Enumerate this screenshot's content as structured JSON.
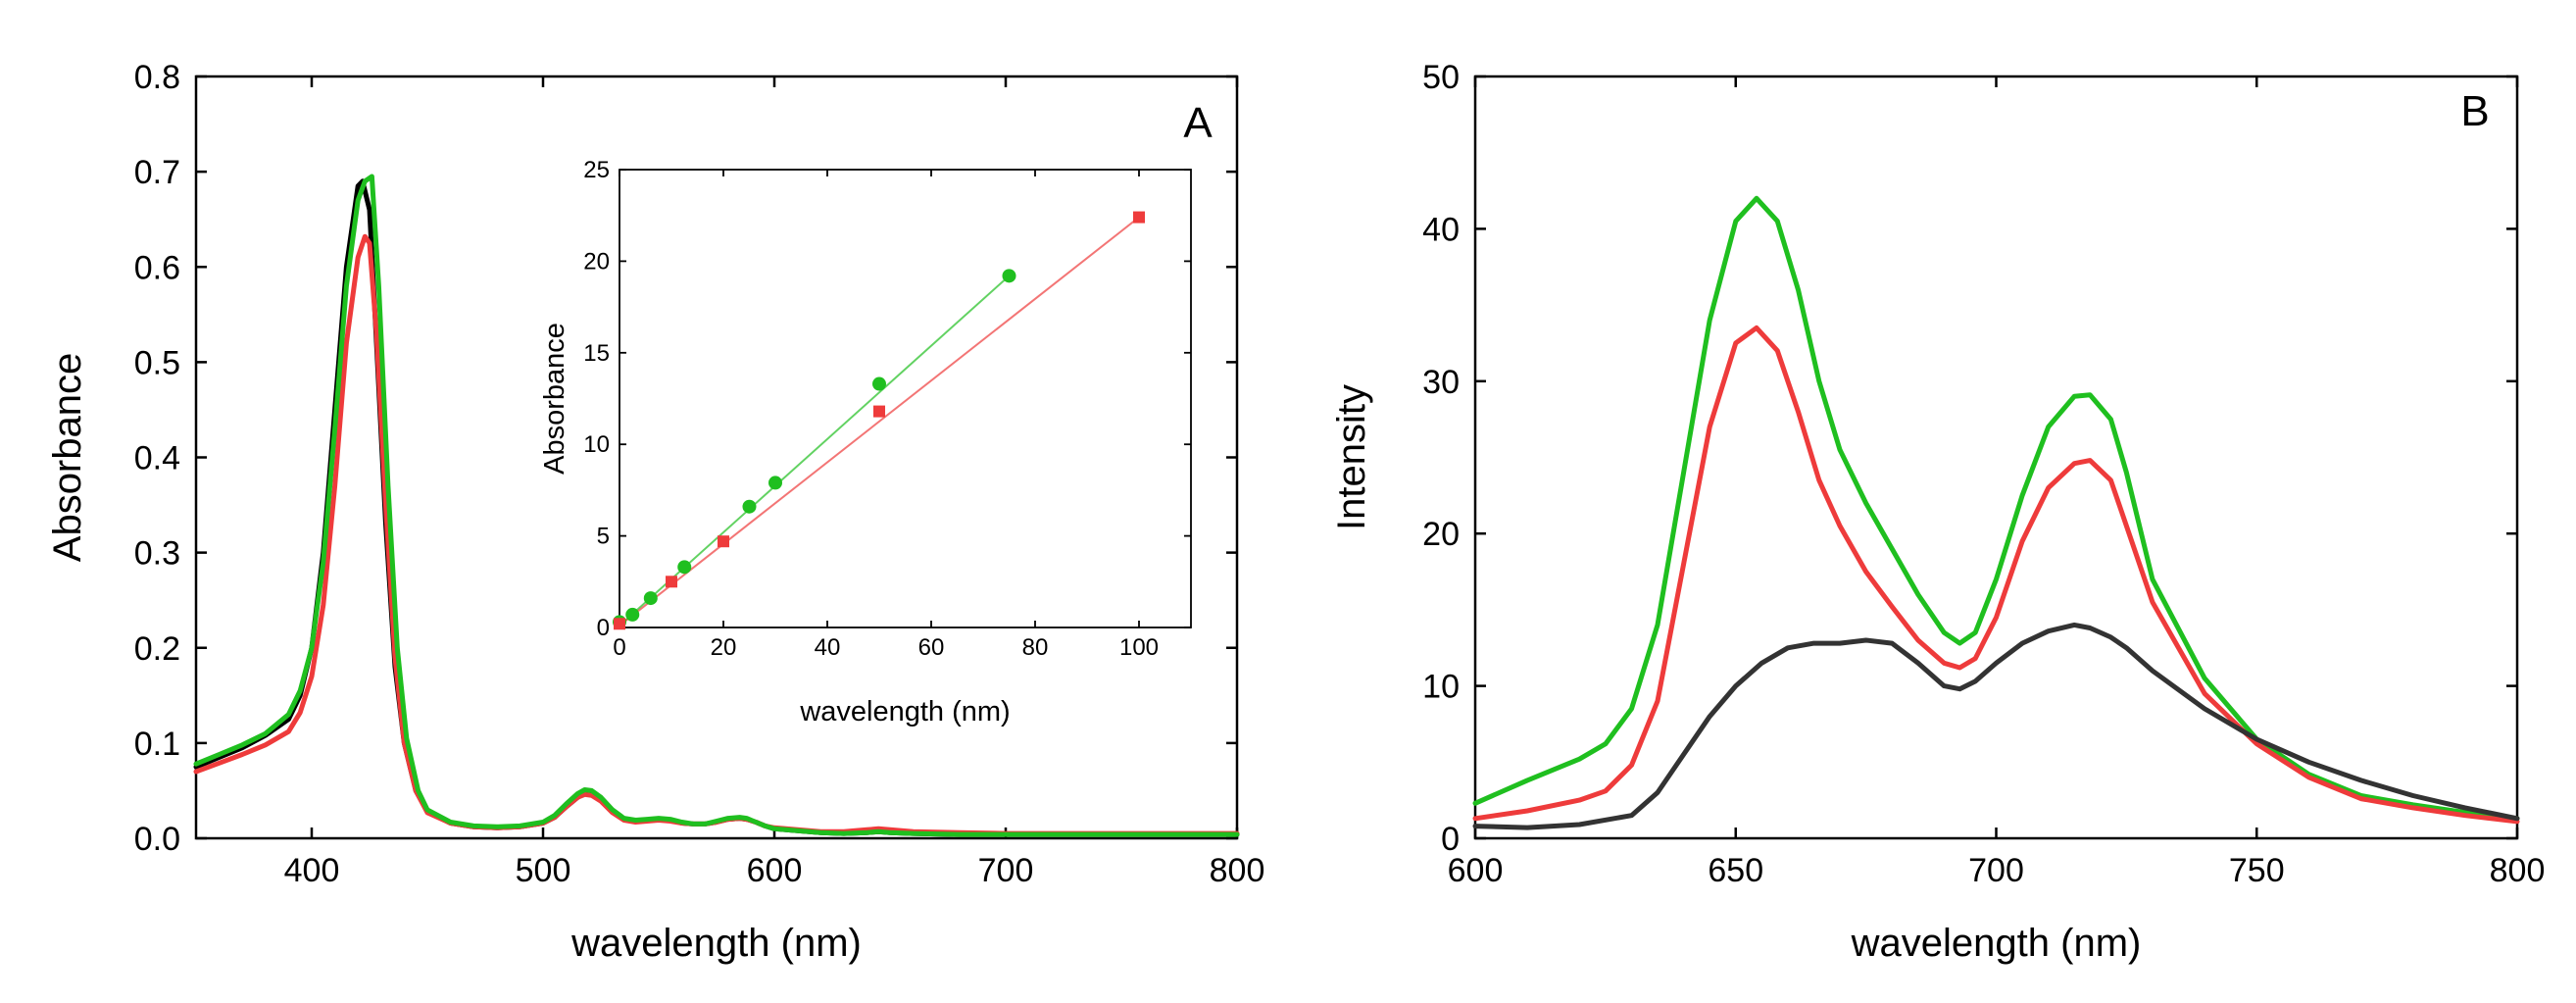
{
  "chart_data": [
    {
      "type": "line",
      "panel_label": "A",
      "xlabel": "wavelength (nm)",
      "ylabel": "Absorbance",
      "xlim": [
        350,
        800
      ],
      "ylim": [
        0,
        0.8
      ],
      "x_ticks": [
        400,
        500,
        600,
        700,
        800
      ],
      "y_ticks": [
        0.0,
        0.1,
        0.2,
        0.3,
        0.4,
        0.5,
        0.6,
        0.7,
        0.8
      ],
      "series": [
        {
          "name": "black",
          "color": "#000000",
          "x": [
            350,
            360,
            370,
            380,
            390,
            395,
            400,
            405,
            410,
            415,
            420,
            422,
            425,
            428,
            432,
            436,
            440,
            445,
            450,
            460,
            470,
            480,
            490,
            500,
            505,
            510,
            515,
            518,
            521,
            525,
            530,
            535,
            540,
            545,
            550,
            555,
            560,
            565,
            570,
            575,
            580,
            585,
            588,
            592,
            596,
            600,
            610,
            620,
            630,
            640,
            645,
            650,
            660,
            680,
            700,
            720,
            750,
            780,
            800
          ],
          "y": [
            0.075,
            0.085,
            0.095,
            0.108,
            0.125,
            0.15,
            0.2,
            0.3,
            0.45,
            0.6,
            0.685,
            0.69,
            0.66,
            0.52,
            0.33,
            0.18,
            0.1,
            0.05,
            0.028,
            0.016,
            0.012,
            0.011,
            0.012,
            0.016,
            0.022,
            0.033,
            0.043,
            0.047,
            0.046,
            0.04,
            0.028,
            0.02,
            0.018,
            0.019,
            0.02,
            0.019,
            0.016,
            0.015,
            0.015,
            0.017,
            0.02,
            0.021,
            0.02,
            0.017,
            0.013,
            0.01,
            0.008,
            0.006,
            0.005,
            0.006,
            0.007,
            0.006,
            0.005,
            0.004,
            0.004,
            0.004,
            0.004,
            0.004,
            0.004
          ]
        },
        {
          "name": "red",
          "color": "#ee3b3b",
          "x": [
            350,
            360,
            370,
            380,
            390,
            395,
            400,
            405,
            410,
            415,
            420,
            423,
            425,
            428,
            432,
            436,
            440,
            445,
            450,
            460,
            470,
            480,
            490,
            500,
            505,
            510,
            515,
            518,
            521,
            525,
            530,
            535,
            540,
            545,
            550,
            555,
            560,
            565,
            570,
            575,
            580,
            585,
            588,
            592,
            596,
            600,
            610,
            620,
            630,
            640,
            645,
            650,
            660,
            680,
            700,
            720,
            750,
            780,
            800
          ],
          "y": [
            0.07,
            0.079,
            0.088,
            0.098,
            0.112,
            0.132,
            0.17,
            0.245,
            0.37,
            0.52,
            0.61,
            0.632,
            0.625,
            0.53,
            0.35,
            0.19,
            0.1,
            0.05,
            0.027,
            0.016,
            0.012,
            0.011,
            0.012,
            0.016,
            0.022,
            0.033,
            0.043,
            0.046,
            0.045,
            0.039,
            0.027,
            0.019,
            0.017,
            0.018,
            0.019,
            0.018,
            0.016,
            0.015,
            0.015,
            0.017,
            0.02,
            0.021,
            0.02,
            0.017,
            0.013,
            0.011,
            0.009,
            0.007,
            0.007,
            0.009,
            0.01,
            0.009,
            0.007,
            0.006,
            0.005,
            0.005,
            0.005,
            0.005,
            0.005
          ]
        },
        {
          "name": "green",
          "color": "#1fbf1f",
          "x": [
            350,
            360,
            370,
            380,
            390,
            395,
            400,
            405,
            410,
            415,
            420,
            423,
            426,
            429,
            433,
            437,
            441,
            446,
            450,
            460,
            470,
            480,
            490,
            500,
            505,
            510,
            515,
            518,
            521,
            525,
            530,
            535,
            540,
            545,
            550,
            555,
            560,
            565,
            570,
            575,
            580,
            585,
            588,
            592,
            596,
            600,
            610,
            620,
            630,
            640,
            645,
            650,
            660,
            680,
            700,
            720,
            750,
            780,
            800
          ],
          "y": [
            0.078,
            0.088,
            0.098,
            0.11,
            0.13,
            0.155,
            0.2,
            0.29,
            0.43,
            0.58,
            0.67,
            0.69,
            0.695,
            0.58,
            0.37,
            0.2,
            0.105,
            0.05,
            0.03,
            0.017,
            0.013,
            0.012,
            0.013,
            0.017,
            0.024,
            0.036,
            0.047,
            0.051,
            0.05,
            0.043,
            0.03,
            0.021,
            0.019,
            0.02,
            0.021,
            0.02,
            0.017,
            0.015,
            0.015,
            0.018,
            0.021,
            0.022,
            0.021,
            0.017,
            0.013,
            0.01,
            0.008,
            0.006,
            0.005,
            0.006,
            0.007,
            0.006,
            0.005,
            0.004,
            0.004,
            0.004,
            0.004,
            0.004,
            0.004
          ]
        }
      ],
      "inset": {
        "type": "scatter",
        "xlabel": "wavelength (nm)",
        "ylabel": "Absorbance",
        "xlim": [
          0,
          110
        ],
        "ylim": [
          0,
          25
        ],
        "x_ticks": [
          0,
          20,
          40,
          60,
          80,
          100
        ],
        "y_ticks": [
          0,
          5,
          10,
          15,
          20,
          25
        ],
        "series": [
          {
            "name": "green",
            "color": "#1fbf1f",
            "marker": "circle",
            "x": [
              0,
              2.5,
              6,
              12.5,
              25,
              30,
              50,
              75
            ],
            "y": [
              0.3,
              0.7,
              1.6,
              3.3,
              6.6,
              7.9,
              13.3,
              19.2
            ],
            "fit": [
              [
                0,
                0.1
              ],
              [
                75,
                19.2
              ]
            ]
          },
          {
            "name": "red",
            "color": "#ee3b3b",
            "marker": "square",
            "x": [
              0,
              10,
              20,
              50,
              100
            ],
            "y": [
              0.2,
              2.5,
              4.7,
              11.8,
              22.4
            ],
            "fit": [
              [
                0,
                0.1
              ],
              [
                100,
                22.4
              ]
            ]
          }
        ]
      }
    },
    {
      "type": "line",
      "panel_label": "B",
      "xlabel": "wavelength (nm)",
      "ylabel": "Intensity",
      "xlim": [
        600,
        800
      ],
      "ylim": [
        0,
        50
      ],
      "x_ticks": [
        600,
        650,
        700,
        750,
        800
      ],
      "y_ticks": [
        0,
        10,
        20,
        30,
        40,
        50
      ],
      "series": [
        {
          "name": "green",
          "color": "#1fbf1f",
          "x": [
            600,
            610,
            620,
            625,
            630,
            635,
            640,
            645,
            650,
            654,
            658,
            662,
            666,
            670,
            675,
            680,
            685,
            690,
            693,
            696,
            700,
            705,
            710,
            715,
            718,
            722,
            725,
            730,
            740,
            750,
            760,
            770,
            780,
            790,
            800
          ],
          "y": [
            2.3,
            3.8,
            5.2,
            6.2,
            8.5,
            14,
            24,
            34,
            40.5,
            42,
            40.5,
            36,
            30,
            25.5,
            22,
            19,
            16,
            13.5,
            12.8,
            13.5,
            17,
            22.5,
            27,
            29,
            29.1,
            27.5,
            24,
            17,
            10.5,
            6.5,
            4.2,
            2.8,
            2.2,
            1.7,
            1.3
          ]
        },
        {
          "name": "red",
          "color": "#ee3b3b",
          "x": [
            600,
            610,
            620,
            625,
            630,
            635,
            640,
            645,
            650,
            654,
            658,
            662,
            666,
            670,
            675,
            680,
            685,
            690,
            693,
            696,
            700,
            705,
            710,
            715,
            718,
            722,
            725,
            730,
            740,
            750,
            760,
            770,
            780,
            790,
            800
          ],
          "y": [
            1.3,
            1.8,
            2.5,
            3.1,
            4.8,
            9,
            18,
            27,
            32.5,
            33.5,
            32,
            28,
            23.5,
            20.5,
            17.5,
            15.2,
            13,
            11.5,
            11.2,
            11.8,
            14.5,
            19.5,
            23,
            24.6,
            24.8,
            23.5,
            20.5,
            15.5,
            9.5,
            6.2,
            4,
            2.6,
            2,
            1.5,
            1.1
          ]
        },
        {
          "name": "black",
          "color": "#333333",
          "x": [
            600,
            610,
            620,
            630,
            635,
            640,
            645,
            650,
            655,
            660,
            665,
            670,
            675,
            680,
            685,
            690,
            693,
            696,
            700,
            705,
            710,
            715,
            718,
            722,
            725,
            730,
            740,
            750,
            760,
            770,
            780,
            790,
            800
          ],
          "y": [
            0.8,
            0.7,
            0.9,
            1.5,
            3,
            5.5,
            8,
            10,
            11.5,
            12.5,
            12.8,
            12.8,
            13,
            12.8,
            11.5,
            10,
            9.8,
            10.3,
            11.5,
            12.8,
            13.6,
            14,
            13.8,
            13.2,
            12.5,
            11,
            8.5,
            6.5,
            5,
            3.8,
            2.8,
            2,
            1.3
          ]
        }
      ]
    }
  ]
}
